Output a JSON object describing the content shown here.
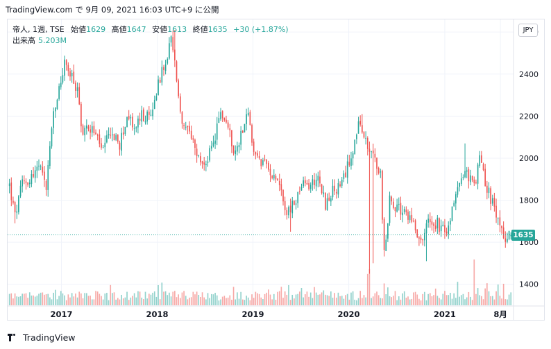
{
  "header": {
    "text": "TradingView.com で 9月 09, 2021 16:03 UTC+9 に公開"
  },
  "legend": {
    "symbol": "帝人, 1週, TSE",
    "open_label": "始値",
    "open_value": "1629",
    "high_label": "高値",
    "high_value": "1647",
    "low_label": "安値",
    "low_value": "1613",
    "close_label": "終値",
    "close_value": "1635",
    "change": "+30 (+1.87%)",
    "volume_label": "出来高",
    "volume_value": "5.203M"
  },
  "currency_button": "JPY",
  "last_price_label": "1635",
  "footer": {
    "brand": "TradingView"
  },
  "colors": {
    "up": "#26a69a",
    "down": "#ef5350",
    "up_volume": "#26a69a",
    "down_volume": "#ef5350",
    "grid": "#f0f3fa",
    "axis_text": "#131722",
    "last_price_line": "#26a69a"
  },
  "chart_data": {
    "type": "candlestick",
    "interval": "1W",
    "yaxis_position": "right",
    "ylim": [
      1300,
      2660
    ],
    "yticks": [
      1400,
      1600,
      1800,
      2000,
      2200,
      2400,
      2600
    ],
    "xlim": [
      "2016-06-10",
      "2021-09-20"
    ],
    "xticks": [
      {
        "label": "2017",
        "date": "2017-01-01"
      },
      {
        "label": "2018",
        "date": "2018-01-01"
      },
      {
        "label": "2019",
        "date": "2019-01-01"
      },
      {
        "label": "2020",
        "date": "2020-01-01"
      },
      {
        "label": "2021",
        "date": "2021-01-01"
      },
      {
        "label": "8月",
        "date": "2021-08-01"
      }
    ],
    "price_path": [
      [
        "2016-06-17",
        1870
      ],
      [
        "2016-07-08",
        1720
      ],
      [
        "2016-08-05",
        1880
      ],
      [
        "2016-09-02",
        1900
      ],
      [
        "2016-10-07",
        1960
      ],
      [
        "2016-11-04",
        1860
      ],
      [
        "2016-11-25",
        2150
      ],
      [
        "2016-12-23",
        2330
      ],
      [
        "2017-01-13",
        2450
      ],
      [
        "2017-02-10",
        2380
      ],
      [
        "2017-03-03",
        2320
      ],
      [
        "2017-03-24",
        2110
      ],
      [
        "2017-04-14",
        2160
      ],
      [
        "2017-05-12",
        2110
      ],
      [
        "2017-06-09",
        2030
      ],
      [
        "2017-07-07",
        2130
      ],
      [
        "2017-08-11",
        2060
      ],
      [
        "2017-09-08",
        2200
      ],
      [
        "2017-10-06",
        2140
      ],
      [
        "2017-11-03",
        2200
      ],
      [
        "2017-12-08",
        2190
      ],
      [
        "2018-01-05",
        2370
      ],
      [
        "2018-02-02",
        2440
      ],
      [
        "2018-02-23",
        2570
      ],
      [
        "2018-03-16",
        2380
      ],
      [
        "2018-04-06",
        2150
      ],
      [
        "2018-05-04",
        2110
      ],
      [
        "2018-06-01",
        2010
      ],
      [
        "2018-06-29",
        1960
      ],
      [
        "2018-08-03",
        2060
      ],
      [
        "2018-08-31",
        2220
      ],
      [
        "2018-09-21",
        2170
      ],
      [
        "2018-10-26",
        2020
      ],
      [
        "2018-11-30",
        2180
      ],
      [
        "2018-12-14",
        2230
      ],
      [
        "2018-12-28",
        2050
      ],
      [
        "2019-02-01",
        1980
      ],
      [
        "2019-03-01",
        1950
      ],
      [
        "2019-04-05",
        1910
      ],
      [
        "2019-05-10",
        1740
      ],
      [
        "2019-06-07",
        1780
      ],
      [
        "2019-07-05",
        1870
      ],
      [
        "2019-08-09",
        1870
      ],
      [
        "2019-09-06",
        1920
      ],
      [
        "2019-10-04",
        1780
      ],
      [
        "2019-11-01",
        1840
      ],
      [
        "2019-12-06",
        1870
      ],
      [
        "2020-01-10",
        2020
      ],
      [
        "2020-02-07",
        2150
      ],
      [
        "2020-02-28",
        2100
      ],
      [
        "2020-03-20",
        2060
      ],
      [
        "2020-04-10",
        1990
      ],
      [
        "2020-05-01",
        1920
      ],
      [
        "2020-05-15",
        1550
      ],
      [
        "2020-06-05",
        1800
      ],
      [
        "2020-07-03",
        1760
      ],
      [
        "2020-08-07",
        1740
      ],
      [
        "2020-09-04",
        1700
      ],
      [
        "2020-10-02",
        1600
      ],
      [
        "2020-10-30",
        1700
      ],
      [
        "2020-12-04",
        1690
      ],
      [
        "2021-01-08",
        1630
      ],
      [
        "2021-02-05",
        1800
      ],
      [
        "2021-03-05",
        1920
      ],
      [
        "2021-04-02",
        1920
      ],
      [
        "2021-04-23",
        1860
      ],
      [
        "2021-05-14",
        1990
      ],
      [
        "2021-06-04",
        1880
      ],
      [
        "2021-07-02",
        1780
      ],
      [
        "2021-07-30",
        1700
      ],
      [
        "2021-08-20",
        1610
      ],
      [
        "2021-09-10",
        1635
      ]
    ],
    "candle_events": [
      {
        "date": "2016-07-08",
        "low": 1690
      },
      {
        "date": "2016-11-04",
        "low": 1820
      },
      {
        "date": "2018-03-09",
        "high": 2610
      },
      {
        "date": "2019-05-24",
        "low": 1650
      },
      {
        "date": "2020-02-21",
        "high": 2210
      },
      {
        "date": "2020-03-20",
        "low": 1450
      },
      {
        "date": "2020-04-03",
        "low": 1500
      },
      {
        "date": "2020-10-23",
        "low": 1510
      },
      {
        "date": "2021-03-19",
        "high": 2070
      },
      {
        "date": "2021-09-10",
        "open": 1629,
        "high": 1647,
        "low": 1613,
        "close": 1635
      }
    ],
    "volume_spikes": [
      {
        "date": "2020-03-13",
        "vol": 26
      },
      {
        "date": "2020-03-20",
        "vol": 30
      },
      {
        "date": "2021-04-23",
        "vol": 38
      },
      {
        "date": "2021-06-04",
        "vol": 14
      }
    ],
    "last": {
      "value": 1635,
      "direction": "up"
    }
  }
}
